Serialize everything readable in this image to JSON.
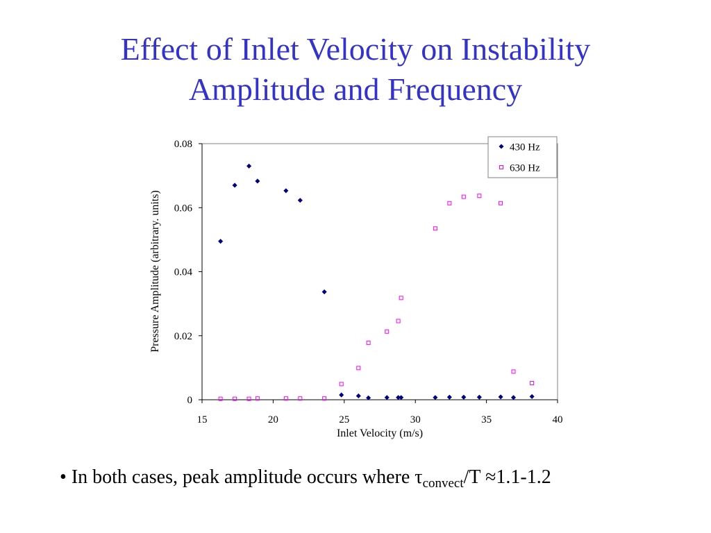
{
  "slide": {
    "title_line1": "Effect of Inlet Velocity on Instability",
    "title_line2": "Amplitude and Frequency",
    "title_color": "#3333cc",
    "bullet": {
      "marker": "•",
      "text_before": "In both cases, peak amplitude occurs where ",
      "tau_symbol": "τ",
      "subscript": "convect",
      "text_after": "/T ",
      "approx_symbol": "≈",
      "value": "1.1-1.2"
    }
  },
  "chart_data": {
    "type": "scatter",
    "xlabel": "Inlet Velocity (m/s)",
    "ylabel": "Pressure Amplitude (arbitrary. units)",
    "xlim": [
      15,
      40
    ],
    "ylim": [
      0,
      0.08
    ],
    "xticks": [
      15,
      20,
      25,
      30,
      35,
      40
    ],
    "xtick_labels": [
      "15",
      "20",
      "25",
      "30",
      "35",
      "40"
    ],
    "yticks": [
      0,
      0.02,
      0.04,
      0.06,
      0.08
    ],
    "ytick_labels": [
      "0",
      "0.02",
      "0.04",
      "0.06",
      "0.08"
    ],
    "grid": false,
    "legend_position": "top-right",
    "series": [
      {
        "name": "430 Hz",
        "marker": "diamond-filled",
        "color": "#000080",
        "points": [
          [
            16.3,
            0.0495
          ],
          [
            17.3,
            0.067
          ],
          [
            18.3,
            0.073
          ],
          [
            18.9,
            0.0683
          ],
          [
            20.9,
            0.0653
          ],
          [
            21.9,
            0.0623
          ],
          [
            23.6,
            0.0337
          ],
          [
            24.8,
            0.0015
          ],
          [
            26.0,
            0.0012
          ],
          [
            26.7,
            0.0006
          ],
          [
            28.0,
            0.0007
          ],
          [
            28.8,
            0.0007
          ],
          [
            29.0,
            0.0007
          ],
          [
            31.4,
            0.0007
          ],
          [
            32.4,
            0.0008
          ],
          [
            33.4,
            0.0008
          ],
          [
            34.5,
            0.0008
          ],
          [
            36.0,
            0.0009
          ],
          [
            36.9,
            0.0007
          ],
          [
            38.2,
            0.001
          ]
        ]
      },
      {
        "name": "630 Hz",
        "marker": "square-open",
        "color": "#ff00ff",
        "points": [
          [
            16.3,
            0.0003
          ],
          [
            17.3,
            0.0003
          ],
          [
            18.3,
            0.0003
          ],
          [
            18.9,
            0.0004
          ],
          [
            20.9,
            0.0004
          ],
          [
            21.9,
            0.0004
          ],
          [
            23.6,
            0.0004
          ],
          [
            24.8,
            0.0049
          ],
          [
            26.0,
            0.0099
          ],
          [
            26.7,
            0.0178
          ],
          [
            28.0,
            0.0213
          ],
          [
            28.8,
            0.0246
          ],
          [
            29.0,
            0.0318
          ],
          [
            31.4,
            0.0535
          ],
          [
            32.4,
            0.0614
          ],
          [
            33.4,
            0.0634
          ],
          [
            34.5,
            0.0637
          ],
          [
            36.0,
            0.0614
          ],
          [
            36.9,
            0.0088
          ],
          [
            38.2,
            0.0052
          ]
        ]
      }
    ]
  }
}
